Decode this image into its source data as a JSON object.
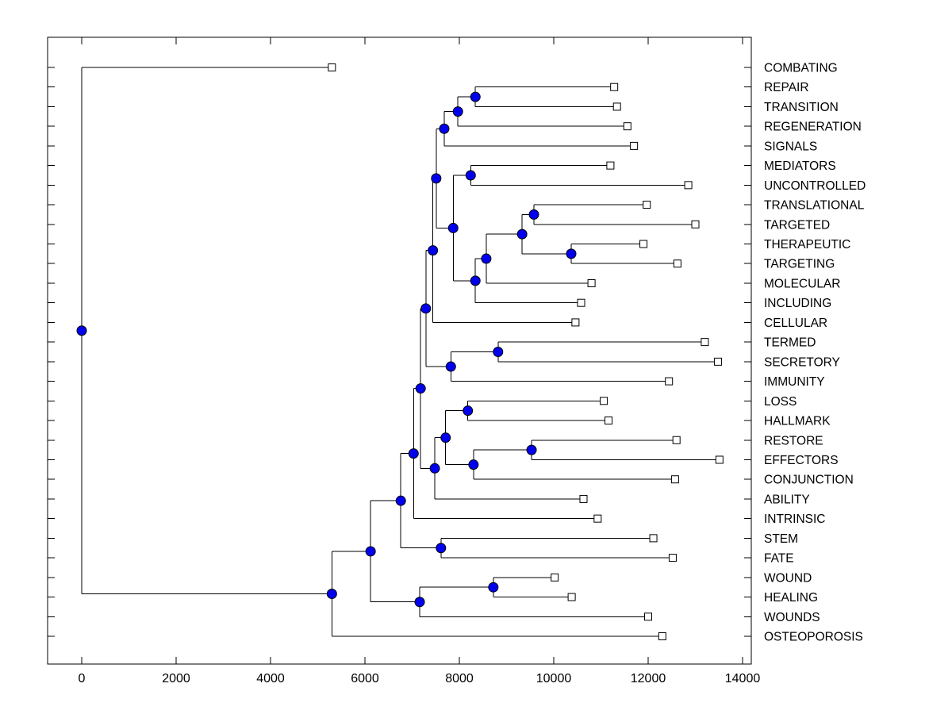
{
  "figure": {
    "background": "#ffffff",
    "line_color": "#000000",
    "internal_marker_fill": "#0000ee",
    "internal_marker_edge": "#000000",
    "leaf_marker_fill": "#ffffff",
    "leaf_marker_edge": "#000000"
  },
  "chart_data": {
    "type": "dendrogram",
    "title": "",
    "xlabel": "",
    "ylabel": "",
    "orientation": "left-to-right",
    "grid": false,
    "x_axis": {
      "min": -700,
      "max": 14200,
      "tick_values": [
        0,
        2000,
        4000,
        6000,
        8000,
        10000,
        12000,
        14000
      ],
      "tick_labels": [
        "0",
        "2000",
        "4000",
        "6000",
        "8000",
        "10000",
        "12000",
        "14000"
      ]
    },
    "leaves": [
      {
        "name": "COMBATING",
        "tip": 5300
      },
      {
        "name": "REPAIR",
        "tip": 11280
      },
      {
        "name": "TRANSITION",
        "tip": 11340
      },
      {
        "name": "REGENERATION",
        "tip": 11560
      },
      {
        "name": "SIGNALS",
        "tip": 11700
      },
      {
        "name": "MEDIATORS",
        "tip": 11200
      },
      {
        "name": "UNCONTROLLED",
        "tip": 12850
      },
      {
        "name": "TRANSLATIONAL",
        "tip": 11970
      },
      {
        "name": "TARGETED",
        "tip": 13000
      },
      {
        "name": "THERAPEUTIC",
        "tip": 11900
      },
      {
        "name": "TARGETING",
        "tip": 12620
      },
      {
        "name": "MOLECULAR",
        "tip": 10800
      },
      {
        "name": "INCLUDING",
        "tip": 10580
      },
      {
        "name": "CELLULAR",
        "tip": 10460
      },
      {
        "name": "TERMED",
        "tip": 13200
      },
      {
        "name": "SECRETORY",
        "tip": 13480
      },
      {
        "name": "IMMUNITY",
        "tip": 12440
      },
      {
        "name": "LOSS",
        "tip": 11060
      },
      {
        "name": "HALLMARK",
        "tip": 11160
      },
      {
        "name": "RESTORE",
        "tip": 12600
      },
      {
        "name": "EFFECTORS",
        "tip": 13510
      },
      {
        "name": "CONJUNCTION",
        "tip": 12570
      },
      {
        "name": "ABILITY",
        "tip": 10630
      },
      {
        "name": "INTRINSIC",
        "tip": 10930
      },
      {
        "name": "STEM",
        "tip": 12110
      },
      {
        "name": "FATE",
        "tip": 12520
      },
      {
        "name": "WOUND",
        "tip": 10020
      },
      {
        "name": "HEALING",
        "tip": 10380
      },
      {
        "name": "WOUNDS",
        "tip": 12000
      },
      {
        "name": "OSTEOPOROSIS",
        "tip": 12300
      }
    ],
    "tree": {
      "v": 0,
      "c": [
        {
          "name": "COMBATING",
          "v": 5300
        },
        {
          "v": 5300,
          "c": [
            {
              "v": 6120,
              "c": [
                {
                  "v": 6760,
                  "c": [
                    {
                      "v": 7030,
                      "c": [
                        {
                          "v": 7180,
                          "c": [
                            {
                              "v": 7290,
                              "c": [
                                {
                                  "v": 7440,
                                  "c": [
                                    {
                                      "v": 7510,
                                      "c": [
                                        {
                                          "v": 7680,
                                          "c": [
                                            {
                                              "v": 7970,
                                              "c": [
                                                {
                                                  "v": 8340,
                                                  "c": [
                                                    {
                                                      "name": "REPAIR",
                                                      "v": 11280
                                                    },
                                                    {
                                                      "name": "TRANSITION",
                                                      "v": 11340
                                                    }
                                                  ]
                                                },
                                                {
                                                  "name": "REGENERATION",
                                                  "v": 11560
                                                }
                                              ]
                                            },
                                            {
                                              "name": "SIGNALS",
                                              "v": 11700
                                            }
                                          ]
                                        },
                                        {
                                          "v": 7870,
                                          "c": [
                                            {
                                              "v": 8240,
                                              "c": [
                                                {
                                                  "name": "MEDIATORS",
                                                  "v": 11200
                                                },
                                                {
                                                  "name": "UNCONTROLLED",
                                                  "v": 12850
                                                }
                                              ]
                                            },
                                            {
                                              "v": 8340,
                                              "c": [
                                                {
                                                  "v": 8570,
                                                  "c": [
                                                    {
                                                      "v": 9330,
                                                      "c": [
                                                        {
                                                          "v": 9580,
                                                          "c": [
                                                            {
                                                              "name": "TRANSLATIONAL",
                                                              "v": 11970
                                                            },
                                                            {
                                                              "name": "TARGETED",
                                                              "v": 13000
                                                            }
                                                          ]
                                                        },
                                                        {
                                                          "v": 10370,
                                                          "c": [
                                                            {
                                                              "name": "THERAPEUTIC",
                                                              "v": 11900
                                                            },
                                                            {
                                                              "name": "TARGETING",
                                                              "v": 12620
                                                            }
                                                          ]
                                                        }
                                                      ]
                                                    },
                                                    {
                                                      "name": "MOLECULAR",
                                                      "v": 10800
                                                    }
                                                  ]
                                                },
                                                {
                                                  "name": "INCLUDING",
                                                  "v": 10580
                                                }
                                              ]
                                            }
                                          ]
                                        }
                                      ]
                                    },
                                    {
                                      "name": "CELLULAR",
                                      "v": 10460
                                    }
                                  ]
                                },
                                {
                                  "v": 7820,
                                  "c": [
                                    {
                                      "v": 8820,
                                      "c": [
                                        {
                                          "name": "TERMED",
                                          "v": 13200
                                        },
                                        {
                                          "name": "SECRETORY",
                                          "v": 13480
                                        }
                                      ]
                                    },
                                    {
                                      "name": "IMMUNITY",
                                      "v": 12440
                                    }
                                  ]
                                }
                              ]
                            },
                            {
                              "v": 7480,
                              "c": [
                                {
                                  "v": 7710,
                                  "c": [
                                    {
                                      "v": 8180,
                                      "c": [
                                        {
                                          "name": "LOSS",
                                          "v": 11060
                                        },
                                        {
                                          "name": "HALLMARK",
                                          "v": 11160
                                        }
                                      ]
                                    },
                                    {
                                      "v": 8300,
                                      "c": [
                                        {
                                          "v": 9530,
                                          "c": [
                                            {
                                              "name": "RESTORE",
                                              "v": 12600
                                            },
                                            {
                                              "name": "EFFECTORS",
                                              "v": 13510
                                            }
                                          ]
                                        },
                                        {
                                          "name": "CONJUNCTION",
                                          "v": 12570
                                        }
                                      ]
                                    }
                                  ]
                                },
                                {
                                  "name": "ABILITY",
                                  "v": 10630
                                }
                              ]
                            }
                          ]
                        },
                        {
                          "name": "INTRINSIC",
                          "v": 10930
                        }
                      ]
                    },
                    {
                      "v": 7610,
                      "c": [
                        {
                          "name": "STEM",
                          "v": 12110
                        },
                        {
                          "name": "FATE",
                          "v": 12520
                        }
                      ]
                    }
                  ]
                },
                {
                  "v": 7160,
                  "c": [
                    {
                      "v": 8720,
                      "c": [
                        {
                          "name": "WOUND",
                          "v": 10020
                        },
                        {
                          "name": "HEALING",
                          "v": 10380
                        }
                      ]
                    },
                    {
                      "name": "WOUNDS",
                      "v": 12000
                    }
                  ]
                }
              ]
            },
            {
              "name": "OSTEOPOROSIS",
              "v": 12300
            }
          ]
        }
      ]
    }
  }
}
